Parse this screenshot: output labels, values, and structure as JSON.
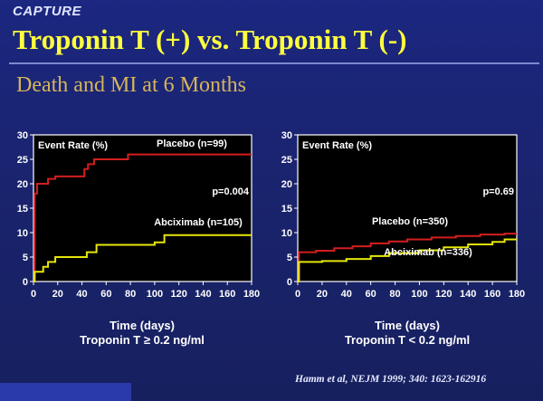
{
  "header": {
    "brand": "CAPTURE",
    "title": "Troponin T (+) vs. Troponin T (-)",
    "subtitle": "Death and MI at 6 Months"
  },
  "citation": "Hamm et al, NEJM 1999; 340: 1623-162916",
  "colors": {
    "placebo": "#d41e1e",
    "abciximab": "#e6e60a",
    "axis": "#ffffff",
    "plot_bg": "#000000"
  },
  "chart_data": [
    {
      "type": "line",
      "step": true,
      "ylabel": "Event Rate (%)",
      "xlabel": "Time (days)",
      "xlabel2": "Troponin T ≥ 0.2 ng/ml",
      "xlim": [
        0,
        180
      ],
      "ylim": [
        0,
        30
      ],
      "xticks": [
        0,
        20,
        40,
        60,
        80,
        100,
        120,
        140,
        160,
        180
      ],
      "yticks": [
        0,
        5,
        10,
        15,
        20,
        25,
        30
      ],
      "grid": false,
      "annotation": "p=0.004",
      "series": [
        {
          "name": "Placebo (n=99)",
          "color_key": "placebo",
          "x": [
            0,
            1,
            3,
            7,
            12,
            18,
            42,
            45,
            50,
            78,
            180
          ],
          "y": [
            0,
            18,
            20,
            20,
            21,
            21.5,
            23,
            24,
            25,
            26,
            26
          ]
        },
        {
          "name": "Abciximab (n=105)",
          "color_key": "abciximab",
          "x": [
            0,
            1,
            8,
            12,
            18,
            40,
            44,
            52,
            100,
            108,
            180
          ],
          "y": [
            0,
            2,
            3,
            4,
            5,
            5,
            6,
            7.5,
            8,
            9.5,
            9.5
          ]
        }
      ]
    },
    {
      "type": "line",
      "step": true,
      "ylabel": "Event Rate (%)",
      "xlabel": "Time (days)",
      "xlabel2": "Troponin T < 0.2 ng/ml",
      "xlim": [
        0,
        180
      ],
      "ylim": [
        0,
        30
      ],
      "xticks": [
        0,
        20,
        40,
        60,
        80,
        100,
        120,
        140,
        160,
        180
      ],
      "yticks": [
        0,
        5,
        10,
        15,
        20,
        25,
        30
      ],
      "grid": false,
      "annotation": "p=0.69",
      "series": [
        {
          "name": "Placebo (n=350)",
          "color_key": "placebo",
          "x": [
            0,
            1,
            15,
            30,
            45,
            60,
            75,
            90,
            110,
            130,
            150,
            170,
            180
          ],
          "y": [
            0,
            6,
            6.3,
            6.8,
            7.2,
            7.8,
            8.2,
            8.6,
            9,
            9.3,
            9.6,
            9.8,
            9.8
          ]
        },
        {
          "name": "Abciximab (n=336)",
          "color_key": "abciximab",
          "x": [
            0,
            1,
            20,
            40,
            60,
            75,
            100,
            120,
            140,
            160,
            170,
            180
          ],
          "y": [
            0,
            4,
            4.2,
            4.6,
            5.2,
            5.8,
            6.4,
            7,
            7.6,
            8.1,
            8.6,
            8.6
          ]
        }
      ]
    }
  ]
}
